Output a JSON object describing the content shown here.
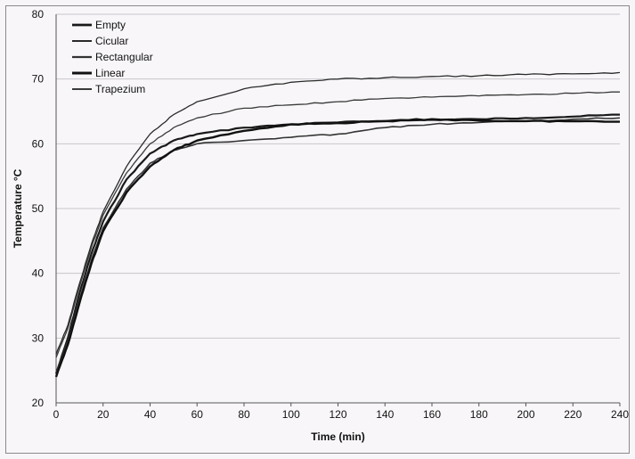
{
  "chart_data": {
    "type": "line",
    "xlabel": "Time (min)",
    "ylabel": "Temperature °C",
    "xlim": [
      0,
      240
    ],
    "ylim": [
      20,
      80
    ],
    "xticks": [
      "0",
      "20",
      "40",
      "60",
      "80",
      "100",
      "120",
      "140",
      "160",
      "180",
      "200",
      "220",
      "240"
    ],
    "yticks": [
      "20",
      "30",
      "40",
      "50",
      "60",
      "70",
      "80"
    ],
    "grid": "horizontal",
    "legend_position": "top-left",
    "x": [
      0,
      5,
      10,
      15,
      20,
      30,
      40,
      50,
      60,
      80,
      100,
      120,
      140,
      160,
      180,
      200,
      220,
      240
    ],
    "series": [
      {
        "name": "Empty",
        "color": "#1a1a1a",
        "values": [
          24.5,
          30,
          37,
          43,
          48,
          54.5,
          58.5,
          60.5,
          61.5,
          62.5,
          63,
          63.3,
          63.5,
          63.7,
          63.8,
          64,
          64.2,
          64.5
        ]
      },
      {
        "name": "Cicular",
        "color": "#2a2a2a",
        "values": [
          27.5,
          32,
          38.5,
          44.5,
          49.5,
          56.5,
          61.5,
          64.5,
          66.5,
          68.5,
          69.5,
          70,
          70.2,
          70.4,
          70.5,
          70.7,
          70.8,
          71
        ]
      },
      {
        "name": "Rectangular",
        "color": "#333333",
        "values": [
          24.5,
          29.5,
          36,
          42,
          47,
          53,
          57,
          59,
          60,
          60.5,
          61,
          61.5,
          62.5,
          63,
          63.3,
          63.5,
          63.8,
          64
        ]
      },
      {
        "name": "Linear",
        "color": "#111111",
        "values": [
          24,
          29,
          35.5,
          41.5,
          46.5,
          52.5,
          56.5,
          59,
          60.5,
          62,
          63,
          63.2,
          63.5,
          63.8,
          63.6,
          63.5,
          63.5,
          63.4
        ]
      },
      {
        "name": "Trapezium",
        "color": "#3a3a3a",
        "values": [
          27,
          31.5,
          38,
          44,
          49,
          55.5,
          60,
          62.5,
          64,
          65.5,
          66,
          66.5,
          67,
          67.2,
          67.4,
          67.6,
          67.8,
          68
        ]
      }
    ]
  }
}
